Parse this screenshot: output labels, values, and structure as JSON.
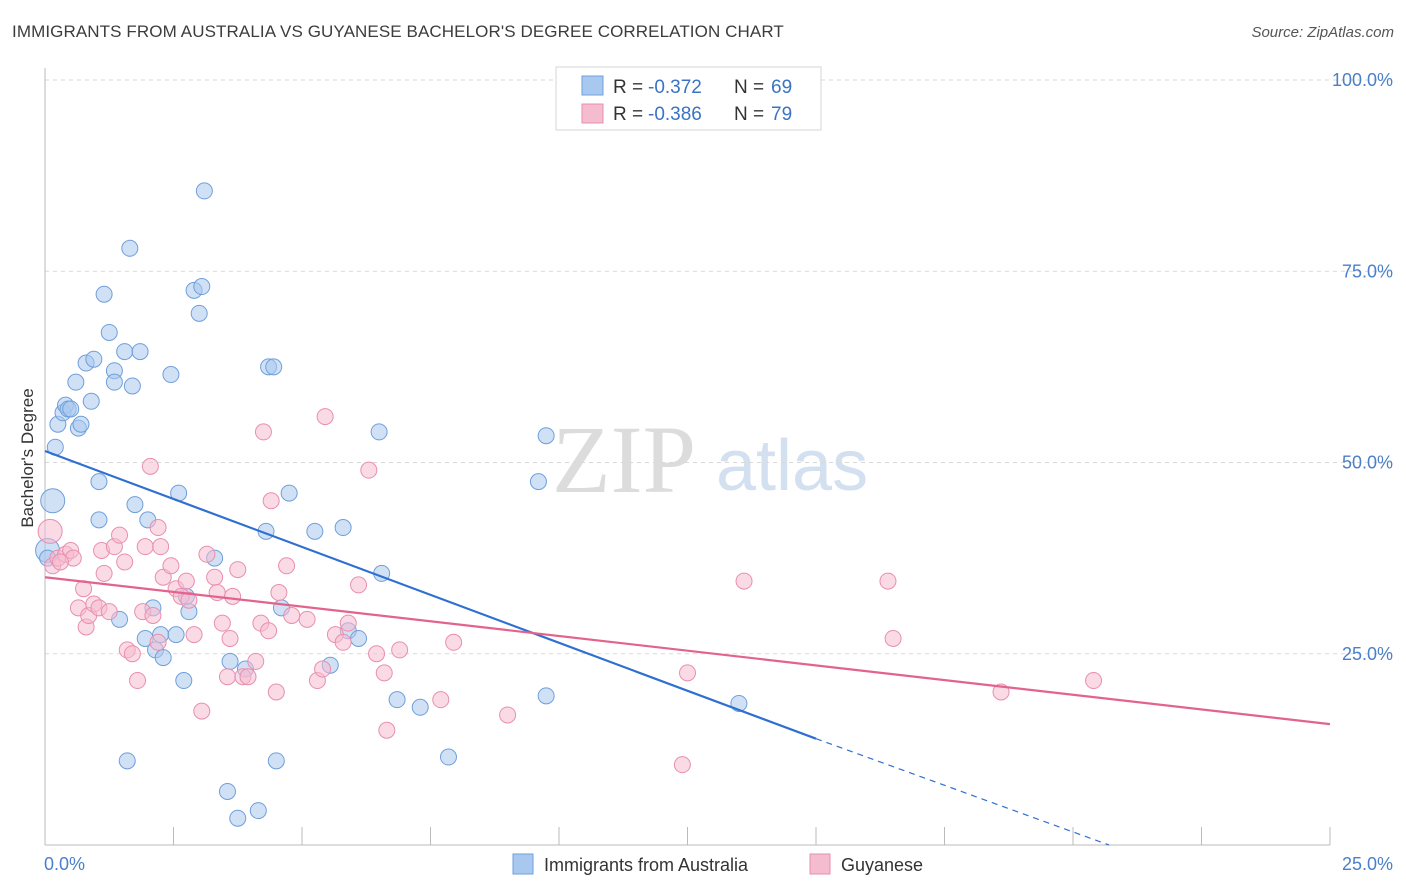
{
  "title": "IMMIGRANTS FROM AUSTRALIA VS GUYANESE BACHELOR'S DEGREE CORRELATION CHART",
  "source": "Source: ZipAtlas.com",
  "watermark": {
    "zip": "ZIP",
    "atlas": "atlas"
  },
  "legend_top": [
    {
      "r_label": "R =",
      "r_value": "-0.372",
      "n_label": "N =",
      "n_value": "69"
    },
    {
      "r_label": "R =",
      "r_value": "-0.386",
      "n_label": "N =",
      "n_value": "79"
    }
  ],
  "colors": {
    "blue_fill": "#a9c8ef",
    "blue_stroke": "#6f9fdb",
    "blue_line": "#2f6fd1",
    "pink_fill": "#f5bcd0",
    "pink_stroke": "#e88fae",
    "pink_line": "#e2638c",
    "tick": "#4a7fc9",
    "grid": "#d9d9d9"
  },
  "chart_data": {
    "type": "scatter",
    "title": "IMMIGRANTS FROM AUSTRALIA VS GUYANESE BACHELOR'S DEGREE CORRELATION CHART",
    "xlabel": "",
    "ylabel": "Bachelor's Degree",
    "xlim": [
      0,
      25
    ],
    "ylim": [
      0,
      100
    ],
    "x_tick_labels": [
      "0.0%",
      "25.0%"
    ],
    "y_ticks": [
      25,
      50,
      75,
      100
    ],
    "y_tick_labels": [
      "25.0%",
      "50.0%",
      "75.0%",
      "100.0%"
    ],
    "grid": true,
    "legend_position": "bottom",
    "series": [
      {
        "name": "Immigrants from Australia",
        "color": "#a9c8ef",
        "r": -0.372,
        "n": 69,
        "trend": {
          "x0": 0,
          "y0": 51.5,
          "x1": 15,
          "y1": 13.9,
          "dashed_to_x": 20.7,
          "dashed_to_y": 0
        },
        "points": [
          [
            0.05,
            38.5
          ],
          [
            0.05,
            37.5
          ],
          [
            0.15,
            45.0
          ],
          [
            0.2,
            52.0
          ],
          [
            0.25,
            55.0
          ],
          [
            0.35,
            56.5
          ],
          [
            0.4,
            57.5
          ],
          [
            0.45,
            57.0
          ],
          [
            0.5,
            57.0
          ],
          [
            0.6,
            60.5
          ],
          [
            0.65,
            54.5
          ],
          [
            0.7,
            55.0
          ],
          [
            0.8,
            63.0
          ],
          [
            0.9,
            58.0
          ],
          [
            0.95,
            63.5
          ],
          [
            1.05,
            47.5
          ],
          [
            1.05,
            42.5
          ],
          [
            1.15,
            72.0
          ],
          [
            1.25,
            67.0
          ],
          [
            1.35,
            62.0
          ],
          [
            1.35,
            60.5
          ],
          [
            1.45,
            29.5
          ],
          [
            1.55,
            64.5
          ],
          [
            1.6,
            11.0
          ],
          [
            1.65,
            78.0
          ],
          [
            1.7,
            60.0
          ],
          [
            1.75,
            44.5
          ],
          [
            1.85,
            64.5
          ],
          [
            1.95,
            27.0
          ],
          [
            2.0,
            42.5
          ],
          [
            2.1,
            31.0
          ],
          [
            2.15,
            25.5
          ],
          [
            2.25,
            27.5
          ],
          [
            2.3,
            24.5
          ],
          [
            2.45,
            61.5
          ],
          [
            2.55,
            27.5
          ],
          [
            2.6,
            46.0
          ],
          [
            2.7,
            21.5
          ],
          [
            2.75,
            32.5
          ],
          [
            2.8,
            30.5
          ],
          [
            2.9,
            72.5
          ],
          [
            3.0,
            69.5
          ],
          [
            3.05,
            73.0
          ],
          [
            3.1,
            85.5
          ],
          [
            3.3,
            37.5
          ],
          [
            3.55,
            7.0
          ],
          [
            3.6,
            24.0
          ],
          [
            3.75,
            3.5
          ],
          [
            3.9,
            23.0
          ],
          [
            4.15,
            4.5
          ],
          [
            4.3,
            41.0
          ],
          [
            4.35,
            62.5
          ],
          [
            4.45,
            62.5
          ],
          [
            4.5,
            11.0
          ],
          [
            4.6,
            31.0
          ],
          [
            4.75,
            46.0
          ],
          [
            5.25,
            41.0
          ],
          [
            5.55,
            23.5
          ],
          [
            5.8,
            41.5
          ],
          [
            5.9,
            28.0
          ],
          [
            6.1,
            27.0
          ],
          [
            6.55,
            35.5
          ],
          [
            6.5,
            54.0
          ],
          [
            6.85,
            19.0
          ],
          [
            7.3,
            18.0
          ],
          [
            7.85,
            11.5
          ],
          [
            9.6,
            47.5
          ],
          [
            9.75,
            53.5
          ],
          [
            9.75,
            19.5
          ],
          [
            13.5,
            18.5
          ]
        ]
      },
      {
        "name": "Guyanese",
        "color": "#f5bcd0",
        "r": -0.386,
        "n": 79,
        "trend": {
          "x0": 0,
          "y0": 35.0,
          "x1": 25,
          "y1": 15.8
        },
        "points": [
          [
            0.1,
            41.0
          ],
          [
            0.15,
            36.5
          ],
          [
            0.25,
            37.5
          ],
          [
            0.4,
            38.0
          ],
          [
            0.5,
            38.5
          ],
          [
            0.55,
            37.5
          ],
          [
            0.65,
            31.0
          ],
          [
            0.75,
            33.5
          ],
          [
            0.8,
            28.5
          ],
          [
            0.85,
            30.0
          ],
          [
            0.95,
            31.5
          ],
          [
            1.05,
            31.0
          ],
          [
            1.1,
            38.5
          ],
          [
            1.15,
            35.5
          ],
          [
            1.25,
            30.5
          ],
          [
            1.35,
            39.0
          ],
          [
            1.45,
            40.5
          ],
          [
            1.55,
            37.0
          ],
          [
            1.6,
            25.5
          ],
          [
            1.7,
            25.0
          ],
          [
            1.8,
            21.5
          ],
          [
            1.9,
            30.5
          ],
          [
            1.95,
            39.0
          ],
          [
            2.05,
            49.5
          ],
          [
            2.1,
            30.0
          ],
          [
            2.2,
            41.5
          ],
          [
            2.25,
            39.0
          ],
          [
            2.3,
            35.0
          ],
          [
            2.45,
            36.5
          ],
          [
            2.55,
            33.5
          ],
          [
            2.65,
            32.5
          ],
          [
            2.75,
            34.5
          ],
          [
            2.8,
            32.0
          ],
          [
            2.9,
            27.5
          ],
          [
            3.05,
            17.5
          ],
          [
            3.15,
            38.0
          ],
          [
            3.3,
            35.0
          ],
          [
            3.35,
            33.0
          ],
          [
            3.45,
            29.0
          ],
          [
            3.55,
            22.0
          ],
          [
            3.6,
            27.0
          ],
          [
            3.65,
            32.5
          ],
          [
            3.75,
            36.0
          ],
          [
            3.85,
            22.0
          ],
          [
            3.95,
            22.0
          ],
          [
            4.1,
            24.0
          ],
          [
            4.2,
            29.0
          ],
          [
            4.25,
            54.0
          ],
          [
            4.35,
            28.0
          ],
          [
            4.4,
            45.0
          ],
          [
            4.5,
            20.0
          ],
          [
            4.55,
            33.0
          ],
          [
            4.7,
            36.5
          ],
          [
            4.8,
            30.0
          ],
          [
            5.1,
            29.5
          ],
          [
            5.3,
            21.5
          ],
          [
            5.4,
            23.0
          ],
          [
            5.45,
            56.0
          ],
          [
            5.65,
            27.5
          ],
          [
            5.8,
            26.5
          ],
          [
            5.9,
            29.0
          ],
          [
            6.1,
            34.0
          ],
          [
            6.3,
            49.0
          ],
          [
            6.45,
            25.0
          ],
          [
            6.6,
            22.5
          ],
          [
            6.65,
            15.0
          ],
          [
            6.9,
            25.5
          ],
          [
            7.7,
            19.0
          ],
          [
            7.95,
            26.5
          ],
          [
            9.0,
            17.0
          ],
          [
            12.4,
            10.5
          ],
          [
            12.5,
            22.5
          ],
          [
            13.6,
            34.5
          ],
          [
            16.4,
            34.5
          ],
          [
            16.5,
            27.0
          ],
          [
            18.6,
            20.0
          ],
          [
            20.4,
            21.5
          ],
          [
            0.3,
            37.0
          ],
          [
            2.2,
            26.5
          ]
        ]
      }
    ]
  },
  "bottom_legend": [
    {
      "label": "Immigrants from Australia"
    },
    {
      "label": "Guyanese"
    }
  ]
}
